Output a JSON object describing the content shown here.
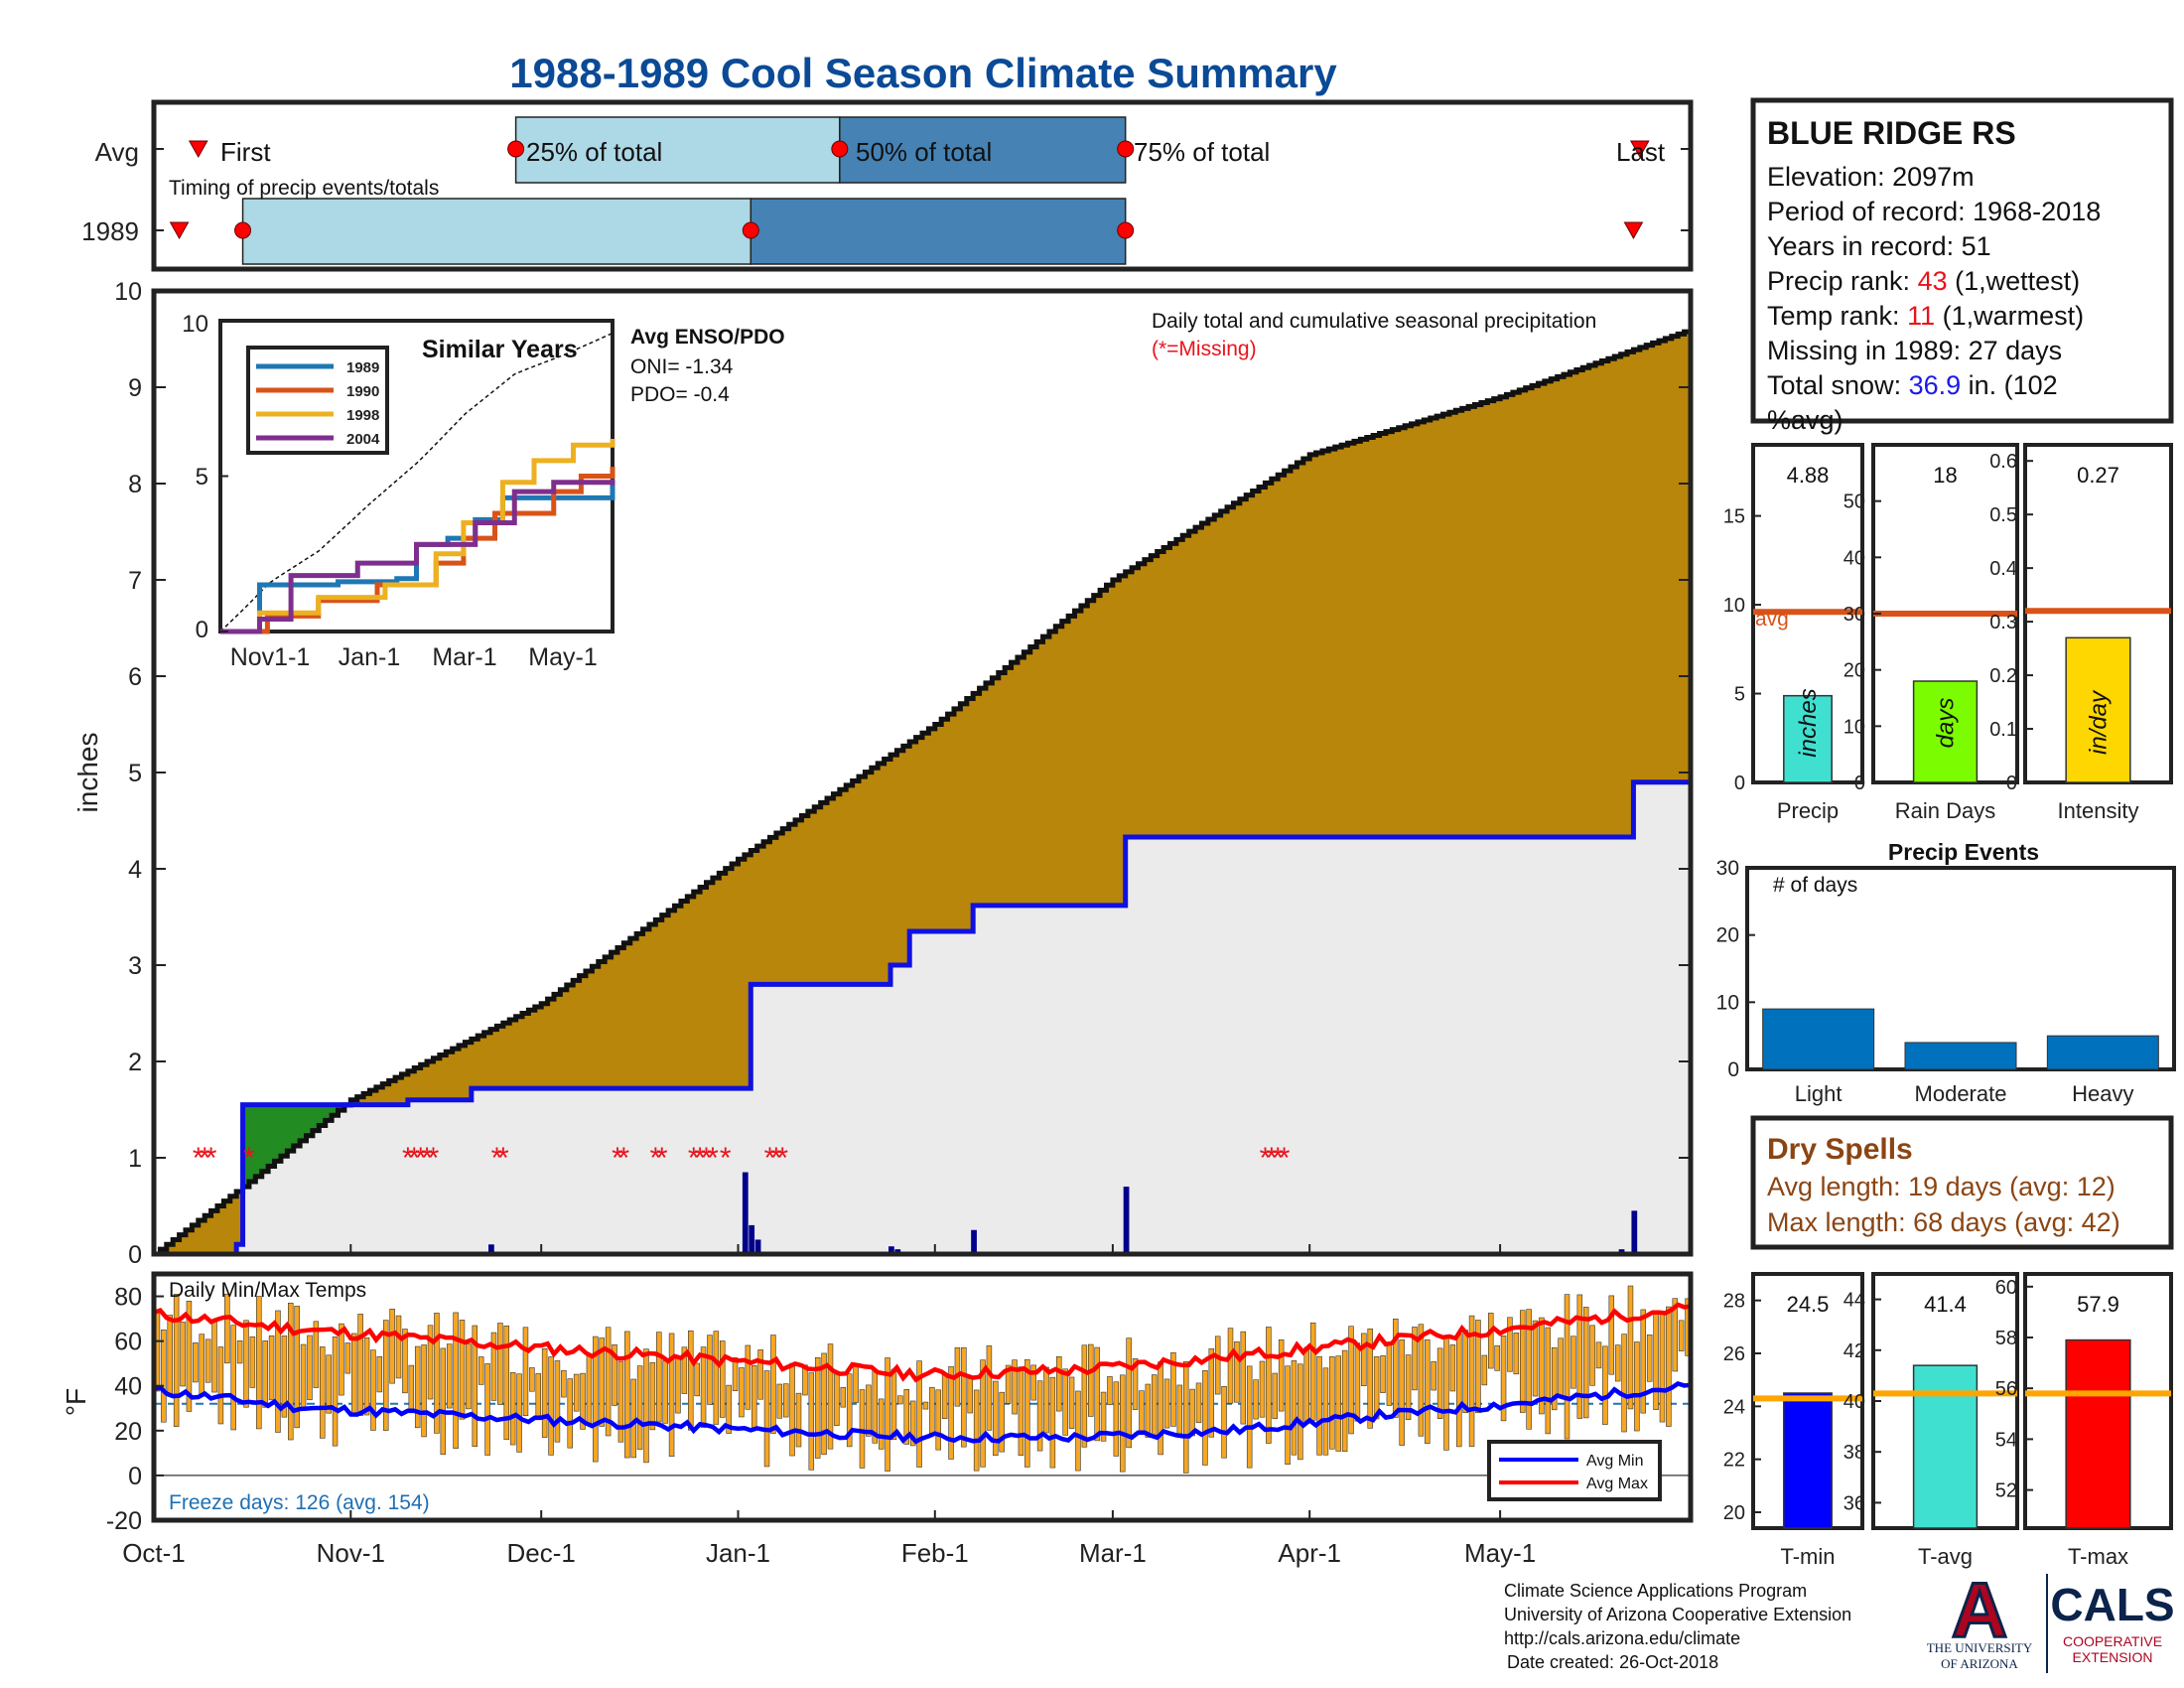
{
  "title": "1988-1989 Cool Season Climate Summary",
  "timing": {
    "label": "Timing of precip events/totals",
    "rows": [
      "Avg",
      "1989"
    ],
    "avg_labels": [
      "First",
      "25% of total",
      "50% of total",
      "75% of total",
      "Last"
    ],
    "avg_dates": [
      "1988-10-08",
      "1988-11-27",
      "1989-01-17",
      "1989-03-03",
      "1989-05-23"
    ],
    "y1989_dates": [
      "1988-10-05",
      "1988-10-15",
      "1989-01-03",
      "1989-03-03",
      "1989-05-22"
    ],
    "colors": {
      "q1": "#add8e6",
      "q2": "#4682b4",
      "marker": "#ff0000"
    }
  },
  "station": {
    "name": "BLUE RIDGE RS",
    "elevation": "Elevation: 2097m",
    "period": "Period of record: 1968-2018",
    "years": "Years in record: 51",
    "precip_rank_label": "Precip rank: ",
    "precip_rank_value": "43",
    "precip_rank_note": " (1,wettest)",
    "temp_rank_label": "Temp rank: ",
    "temp_rank_value": "11",
    "temp_rank_note": " (1,warmest)",
    "missing": "Missing in 1989: 27 days",
    "snow_label": "Total snow: ",
    "snow_value": "36.9",
    "snow_note": " in. (102",
    "snow_note2": "%avg)"
  },
  "main": {
    "ylabel": "inches",
    "annotation": "Daily total and cumulative seasonal precipitation",
    "missing_note": "(*=Missing)",
    "xticks": [
      "Oct-1",
      "Nov-1",
      "Dec-1",
      "Jan-1",
      "Feb-1",
      "Mar-1",
      "Apr-1",
      "May-1"
    ],
    "yticks": [
      "0",
      "1",
      "2",
      "3",
      "4",
      "5",
      "6",
      "7",
      "8",
      "9",
      "10"
    ]
  },
  "inset": {
    "title": "Similar Years",
    "enso_title": "Avg ENSO/PDO",
    "oni": "ONI= -1.34",
    "pdo": "PDO= -0.4",
    "xticks": [
      "Nov1-1",
      "Jan-1",
      "Mar-1",
      "May-1"
    ],
    "yticks": [
      "0",
      "5",
      "10"
    ]
  },
  "temps": {
    "label": "Daily Min/Max Temps",
    "ylabel": "°F",
    "freeze": "Freeze days: 126 (avg. 154)",
    "legend": [
      "Avg Min",
      "Avg Max"
    ],
    "yticks": [
      "-20",
      "0",
      "20",
      "40",
      "60",
      "80"
    ]
  },
  "bars_top": [
    {
      "label": "Precip",
      "value": "4.88",
      "unit": "inches",
      "avg_label": "avg",
      "yticks": [
        "0",
        "5",
        "10",
        "15"
      ]
    },
    {
      "label": "Rain Days",
      "value": "18",
      "unit": "days",
      "yticks": [
        "0",
        "10",
        "20",
        "30",
        "40",
        "50"
      ]
    },
    {
      "label": "Intensity",
      "value": "0.27",
      "unit": "in/day",
      "yticks": [
        "0",
        "0.1",
        "0.2",
        "0.3",
        "0.4",
        "0.5",
        "0.6"
      ]
    }
  ],
  "events": {
    "title": "Precip Events",
    "ylabel": "# of days",
    "categories": [
      "Light",
      "Moderate",
      "Heavy"
    ],
    "yticks": [
      "0",
      "10",
      "20",
      "30"
    ]
  },
  "dry_spells": {
    "title": "Dry Spells",
    "avg": "Avg length: 19 days (avg: 12)",
    "max": "Max length: 68 days (avg: 42)"
  },
  "temp_bars": [
    {
      "label": "T-min",
      "value": "24.5",
      "yticks": [
        "20",
        "22",
        "24",
        "26",
        "28"
      ]
    },
    {
      "label": "T-avg",
      "value": "41.4",
      "yticks": [
        "36",
        "38",
        "40",
        "42",
        "44"
      ]
    },
    {
      "label": "T-max",
      "value": "57.9",
      "yticks": [
        "52",
        "54",
        "56",
        "58",
        "60"
      ]
    }
  ],
  "footer": {
    "line1": "Climate Science Applications Program",
    "line2": "University of Arizona Cooperative Extension",
    "line3": "http://cals.arizona.edu/climate",
    "line4": "Date created: 26-Oct-2018",
    "ua_logo": "A",
    "ua_name1": "THE UNIVERSITY",
    "ua_name2": "OF ARIZONA",
    "cals": "CALS",
    "coop1": "COOPERATIVE",
    "coop2": "EXTENSION"
  },
  "chart_data": [
    {
      "type": "area",
      "name": "cumulative precipitation",
      "xlim": [
        "1988-10-01",
        "1989-05-31"
      ],
      "ylim": [
        0,
        10
      ],
      "avg_cumulative": {
        "x": [
          "1988-10-01",
          "1988-10-15",
          "1988-11-01",
          "1988-12-01",
          "1989-01-01",
          "1989-02-01",
          "1989-03-01",
          "1989-04-01",
          "1989-05-01",
          "1989-05-31"
        ],
        "y": [
          0,
          0.7,
          1.6,
          2.6,
          4.1,
          5.5,
          7.0,
          8.3,
          8.9,
          9.6
        ]
      },
      "cumulative_1989": {
        "x": [
          "1988-10-01",
          "1988-10-14",
          "1988-10-15",
          "1988-11-10",
          "1988-11-20",
          "1989-01-02",
          "1989-01-03",
          "1989-01-25",
          "1989-01-28",
          "1989-02-07",
          "1989-03-03",
          "1989-05-15",
          "1989-05-22",
          "1989-05-31"
        ],
        "y": [
          0,
          0.1,
          1.55,
          1.6,
          1.72,
          1.72,
          2.8,
          3.0,
          3.35,
          3.62,
          4.33,
          4.33,
          4.9,
          4.9
        ]
      },
      "daily_totals": {
        "x": [
          "1988-11-08",
          "1988-11-23",
          "1989-01-02",
          "1989-01-03",
          "1989-01-04",
          "1989-01-25",
          "1989-01-26",
          "1989-02-07",
          "1989-03-03",
          "1989-05-20",
          "1989-05-22"
        ],
        "y": [
          0.02,
          0.1,
          0.85,
          0.3,
          0.15,
          0.08,
          0.05,
          0.25,
          0.7,
          0.05,
          0.45
        ]
      },
      "missing_days": [
        "1988-10-08",
        "1988-10-09",
        "1988-10-10",
        "1988-10-16",
        "1988-11-10",
        "1988-11-11",
        "1988-11-12",
        "1988-11-13",
        "1988-11-14",
        "1988-11-24",
        "1988-11-25",
        "1988-12-13",
        "1988-12-14",
        "1988-12-19",
        "1988-12-20",
        "1988-12-25",
        "1988-12-26",
        "1988-12-27",
        "1988-12-28",
        "1988-12-30",
        "1989-01-06",
        "1989-01-07",
        "1989-01-08",
        "1989-03-25",
        "1989-03-26",
        "1989-03-27",
        "1989-03-28"
      ]
    },
    {
      "type": "line",
      "name": "similar years inset",
      "ylim": [
        0,
        10
      ],
      "avg_cumulative_end": 9.6,
      "series": [
        {
          "name": "1989",
          "color": "#1f77b4",
          "x": [
            0,
            0.1,
            0.3,
            0.45,
            0.5,
            0.58,
            0.65,
            0.72,
            0.8,
            1.0
          ],
          "y": [
            0,
            1.5,
            1.6,
            1.7,
            2.8,
            3.0,
            3.6,
            4.3,
            4.3,
            4.9
          ]
        },
        {
          "name": "1990",
          "color": "#d95319",
          "x": [
            0,
            0.12,
            0.25,
            0.4,
            0.55,
            0.62,
            0.7,
            0.85,
            0.92,
            1.0
          ],
          "y": [
            0,
            0.5,
            1.0,
            1.5,
            2.2,
            3.0,
            3.8,
            4.5,
            5.0,
            5.3
          ]
        },
        {
          "name": "1998",
          "color": "#edb120",
          "x": [
            0,
            0.1,
            0.25,
            0.42,
            0.55,
            0.62,
            0.72,
            0.8,
            0.9,
            1.0
          ],
          "y": [
            0,
            0.6,
            1.1,
            1.5,
            2.5,
            3.5,
            4.8,
            5.5,
            6.0,
            6.2
          ]
        },
        {
          "name": "2004",
          "color": "#7e2f8e",
          "x": [
            0,
            0.1,
            0.18,
            0.35,
            0.5,
            0.65,
            0.75,
            0.85,
            1.0
          ],
          "y": [
            0,
            0.4,
            1.8,
            2.2,
            2.8,
            3.5,
            4.5,
            4.8,
            4.7
          ]
        }
      ]
    },
    {
      "type": "bar",
      "name": "seasonal totals vs average",
      "series": [
        {
          "name": "Precip",
          "value": 4.88,
          "avg": 9.6,
          "ylim": [
            0,
            19
          ],
          "color": "#40e0d0"
        },
        {
          "name": "Rain Days",
          "value": 18,
          "avg": 30,
          "ylim": [
            0,
            60
          ],
          "color": "#7cfc00"
        },
        {
          "name": "Intensity",
          "value": 0.27,
          "avg": 0.32,
          "ylim": [
            0,
            0.63
          ],
          "color": "#ffd700"
        }
      ]
    },
    {
      "type": "bar",
      "name": "Precip Events",
      "categories": [
        "Light",
        "Moderate",
        "Heavy"
      ],
      "values": [
        9,
        4,
        5
      ],
      "ylim": [
        0,
        30
      ],
      "color": "#0072bd"
    },
    {
      "type": "bar",
      "name": "daily min/max temps",
      "ylim": [
        -20,
        90
      ],
      "freeze_line": 32,
      "avg_min": {
        "x": [
          0,
          0.1,
          0.25,
          0.4,
          0.5,
          0.6,
          0.7,
          0.8,
          0.9,
          1.0
        ],
        "y": [
          38,
          30,
          25,
          20,
          17,
          17,
          20,
          27,
          33,
          40
        ]
      },
      "avg_max": {
        "x": [
          0,
          0.1,
          0.25,
          0.4,
          0.5,
          0.6,
          0.7,
          0.8,
          0.9,
          1.0
        ],
        "y": [
          72,
          65,
          57,
          50,
          45,
          47,
          53,
          60,
          67,
          75
        ]
      },
      "colors": {
        "bars": "#f5a623",
        "avg_min": "#0000ff",
        "avg_max": "#ff0000",
        "freeze": "#1f77b4"
      }
    },
    {
      "type": "bar",
      "name": "seasonal temps vs average",
      "series": [
        {
          "name": "T-min",
          "value": 24.5,
          "avg": 24.3,
          "ylim": [
            19.4,
            29
          ],
          "color": "#0000ff"
        },
        {
          "name": "T-avg",
          "value": 41.4,
          "avg": 40.3,
          "ylim": [
            35,
            45
          ],
          "color": "#40e0d0"
        },
        {
          "name": "T-max",
          "value": 57.9,
          "avg": 55.8,
          "ylim": [
            50.5,
            60.5
          ],
          "color": "#ff0000"
        }
      ],
      "avg_color": "#ffa500"
    }
  ]
}
